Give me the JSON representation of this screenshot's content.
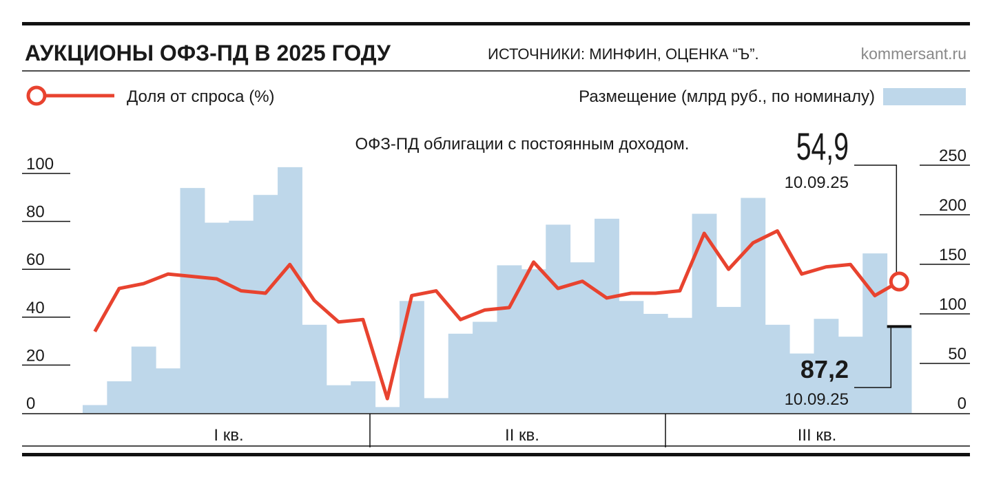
{
  "chart_data": {
    "type": "bar-line",
    "title": "АУКЦИОНЫ ОФЗ-ПД В 2025 ГОДУ",
    "source": "ИСТОЧНИКИ: МИНФИН, ОЦЕНКА “Ъ”.",
    "site": "kommersant.ru",
    "subtitle": "ОФЗ-ПД облигации с постоянным доходом.",
    "quarters": [
      "I кв.",
      "II кв.",
      "III кв."
    ],
    "categories": [
      null,
      null,
      null,
      null,
      null,
      null,
      null,
      null,
      null,
      null,
      null,
      null,
      null,
      null,
      null,
      null,
      null,
      null,
      null,
      null,
      null,
      null,
      null,
      null,
      null,
      null,
      null,
      null,
      null,
      null,
      null,
      null,
      null,
      null
    ],
    "last_date": "10.09.25",
    "series": [
      {
        "name": "Размещение (млрд руб., по номиналу)",
        "type": "bar",
        "axis": "y2",
        "color": "#bed7ea",
        "values": [
          8,
          32,
          67,
          45,
          227,
          192,
          194,
          220,
          248,
          89,
          28,
          32,
          6,
          113,
          15,
          80,
          92,
          149,
          145,
          190,
          152,
          196,
          113,
          100,
          96,
          201,
          107,
          217,
          89,
          60,
          95,
          77,
          161,
          87.2
        ],
        "value_labels": [
          null,
          null,
          null,
          null,
          null,
          null,
          null,
          null,
          null,
          null,
          null,
          null,
          null,
          null,
          null,
          null,
          null,
          null,
          null,
          null,
          null,
          null,
          null,
          null,
          null,
          null,
          null,
          null,
          null,
          null,
          null,
          null,
          null,
          "87,2"
        ]
      },
      {
        "name": "Доля от спроса (%)",
        "type": "line",
        "color": "#e8432f",
        "values": [
          34,
          52,
          54,
          58,
          57,
          56,
          51,
          50,
          62,
          47,
          38,
          39,
          6,
          49,
          51,
          39,
          43,
          44,
          63,
          52,
          55,
          48,
          50,
          50,
          51,
          75,
          60,
          71,
          76,
          58,
          61,
          62,
          49,
          54.9
        ],
        "value_labels": [
          null,
          null,
          null,
          null,
          null,
          null,
          null,
          null,
          null,
          null,
          null,
          null,
          null,
          null,
          null,
          null,
          null,
          null,
          null,
          null,
          null,
          null,
          null,
          null,
          null,
          null,
          null,
          null,
          null,
          null,
          null,
          null,
          null,
          "54,9"
        ]
      }
    ],
    "ylim": [
      0,
      100
    ],
    "yticks": [
      0,
      20,
      40,
      60,
      80,
      100
    ],
    "y2lim": [
      0,
      250
    ],
    "y2ticks": [
      0,
      50,
      100,
      150,
      200,
      250
    ]
  }
}
